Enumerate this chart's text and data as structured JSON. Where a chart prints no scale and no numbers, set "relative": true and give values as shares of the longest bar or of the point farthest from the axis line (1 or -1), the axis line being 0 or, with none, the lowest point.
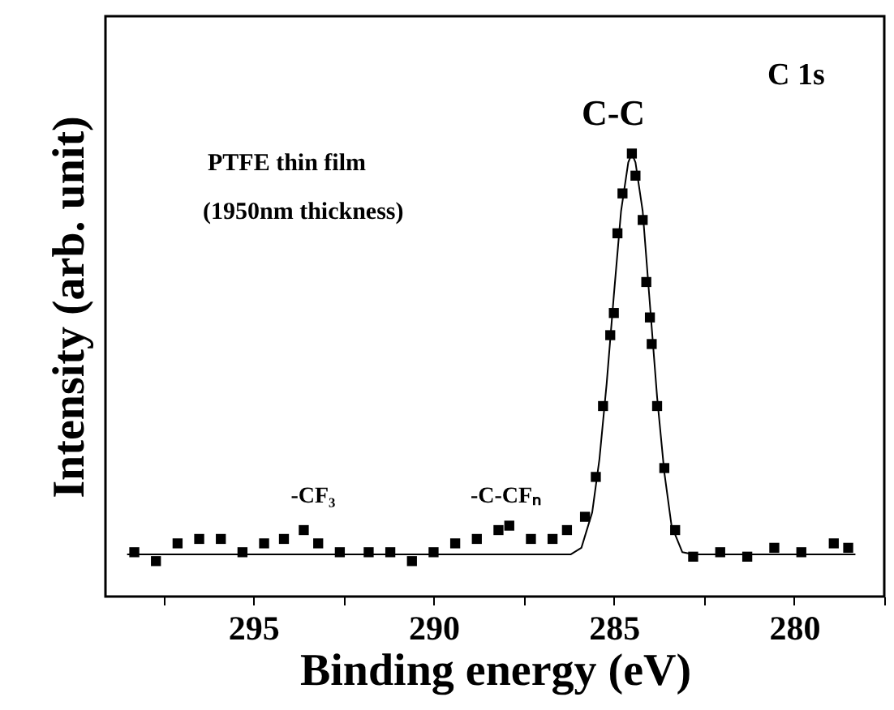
{
  "chart_data": {
    "type": "scatter",
    "relative": true,
    "xlabel": "Binding energy (eV)",
    "ylabel": "Intensity (arb. unit)",
    "xlim": [
      299.1,
      277.5
    ],
    "xticks": [
      {
        "value": 297.5,
        "label": null
      },
      295,
      {
        "value": 292.5,
        "label": null
      },
      290,
      {
        "value": 287.5,
        "label": null
      },
      285,
      {
        "value": 282.5,
        "label": null
      },
      280,
      {
        "value": 277.5,
        "label": null
      }
    ],
    "grid": false,
    "series": [
      {
        "marker": "square",
        "color": "#000000",
        "x": [
          298.3,
          297.7,
          297.1,
          296.5,
          295.9,
          295.3,
          294.7,
          294.15,
          293.6,
          293.2,
          292.6,
          291.8,
          291.2,
          290.6,
          290.0,
          289.4,
          288.8,
          288.2,
          287.9,
          287.3,
          286.7,
          286.3,
          285.8,
          285.5,
          285.3,
          285.1,
          285.0,
          284.9,
          284.76,
          284.5,
          284.4,
          284.2,
          284.1,
          284.0,
          283.95,
          283.8,
          283.6,
          283.3,
          282.8,
          282.05,
          281.3,
          280.55,
          279.8,
          278.9,
          278.5
        ],
        "values": [
          0.1,
          0.08,
          0.12,
          0.13,
          0.13,
          0.1,
          0.12,
          0.13,
          0.15,
          0.12,
          0.1,
          0.1,
          0.1,
          0.08,
          0.1,
          0.12,
          0.13,
          0.15,
          0.16,
          0.13,
          0.13,
          0.15,
          0.18,
          0.27,
          0.43,
          0.59,
          0.64,
          0.82,
          0.91,
          1.0,
          0.95,
          0.85,
          0.71,
          0.63,
          0.57,
          0.43,
          0.29,
          0.15,
          0.09,
          0.1,
          0.09,
          0.11,
          0.1,
          0.12,
          0.11
        ]
      },
      {
        "type": "line",
        "marker": "none",
        "color": "#000000",
        "line_style": "solid",
        "x": [
          298.5,
          286.2,
          285.9,
          285.6,
          285.4,
          285.2,
          285.0,
          284.8,
          284.6,
          284.5,
          284.4,
          284.2,
          284.0,
          283.8,
          283.6,
          283.4,
          283.1,
          282.8,
          278.3
        ],
        "values": [
          0.095,
          0.095,
          0.11,
          0.19,
          0.31,
          0.48,
          0.68,
          0.87,
          0.98,
          1.0,
          0.98,
          0.87,
          0.66,
          0.45,
          0.28,
          0.16,
          0.1,
          0.095,
          0.095
        ]
      }
    ],
    "annotations": [
      "C 1s",
      "PTFE thin film",
      "(1950nm thickness)",
      "C-C",
      "-CF₃",
      "-C-CFₙ"
    ]
  }
}
